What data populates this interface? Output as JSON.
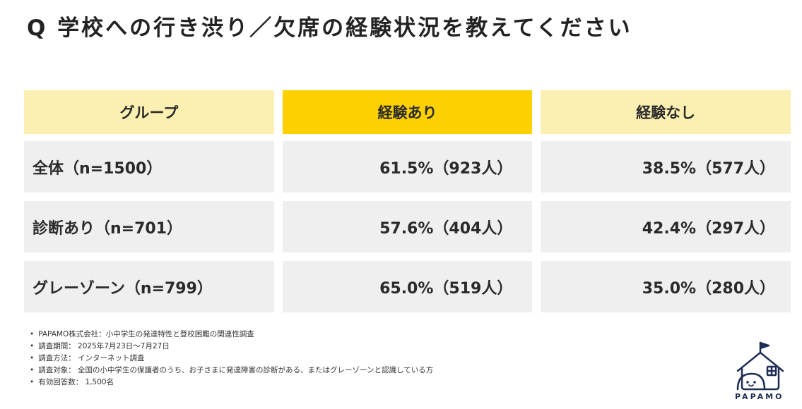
{
  "title": "Q 学校への行き渋り／欠席の経験状況を教えてください",
  "table": {
    "headers": [
      "グループ",
      "経験あり",
      "経験なし"
    ],
    "rows": [
      {
        "group": "全体（n=1500）",
        "yes": "61.5%（923人）",
        "no": "38.5%（577人）"
      },
      {
        "group": "診断あり（n=701）",
        "yes": "57.6%（404人）",
        "no": "42.4%（297人）"
      },
      {
        "group": "グレーゾーン（n=799）",
        "yes": "65.0%（519人）",
        "no": "35.0%（280人）"
      }
    ]
  },
  "notes": [
    "PAPAMO株式会社：小中学生の発達特性と登校困難の関連性調査",
    "調査期間： 2025年7月23日〜7月27日",
    "調査方法： インターネット調査",
    "調査対象： 全国の小中学生の保護者のうち、お子さまに発達障害の診断がある、またはグレーゾーンと認識している方",
    "有効回答数： 1,500名"
  ],
  "logo": {
    "text": "PAPAMO",
    "icon": "house-face-icon",
    "color": "#1f2e55"
  },
  "colors": {
    "header_light": "#fcefb2",
    "header_accent": "#fdd000",
    "cell_bg": "#efefef"
  }
}
